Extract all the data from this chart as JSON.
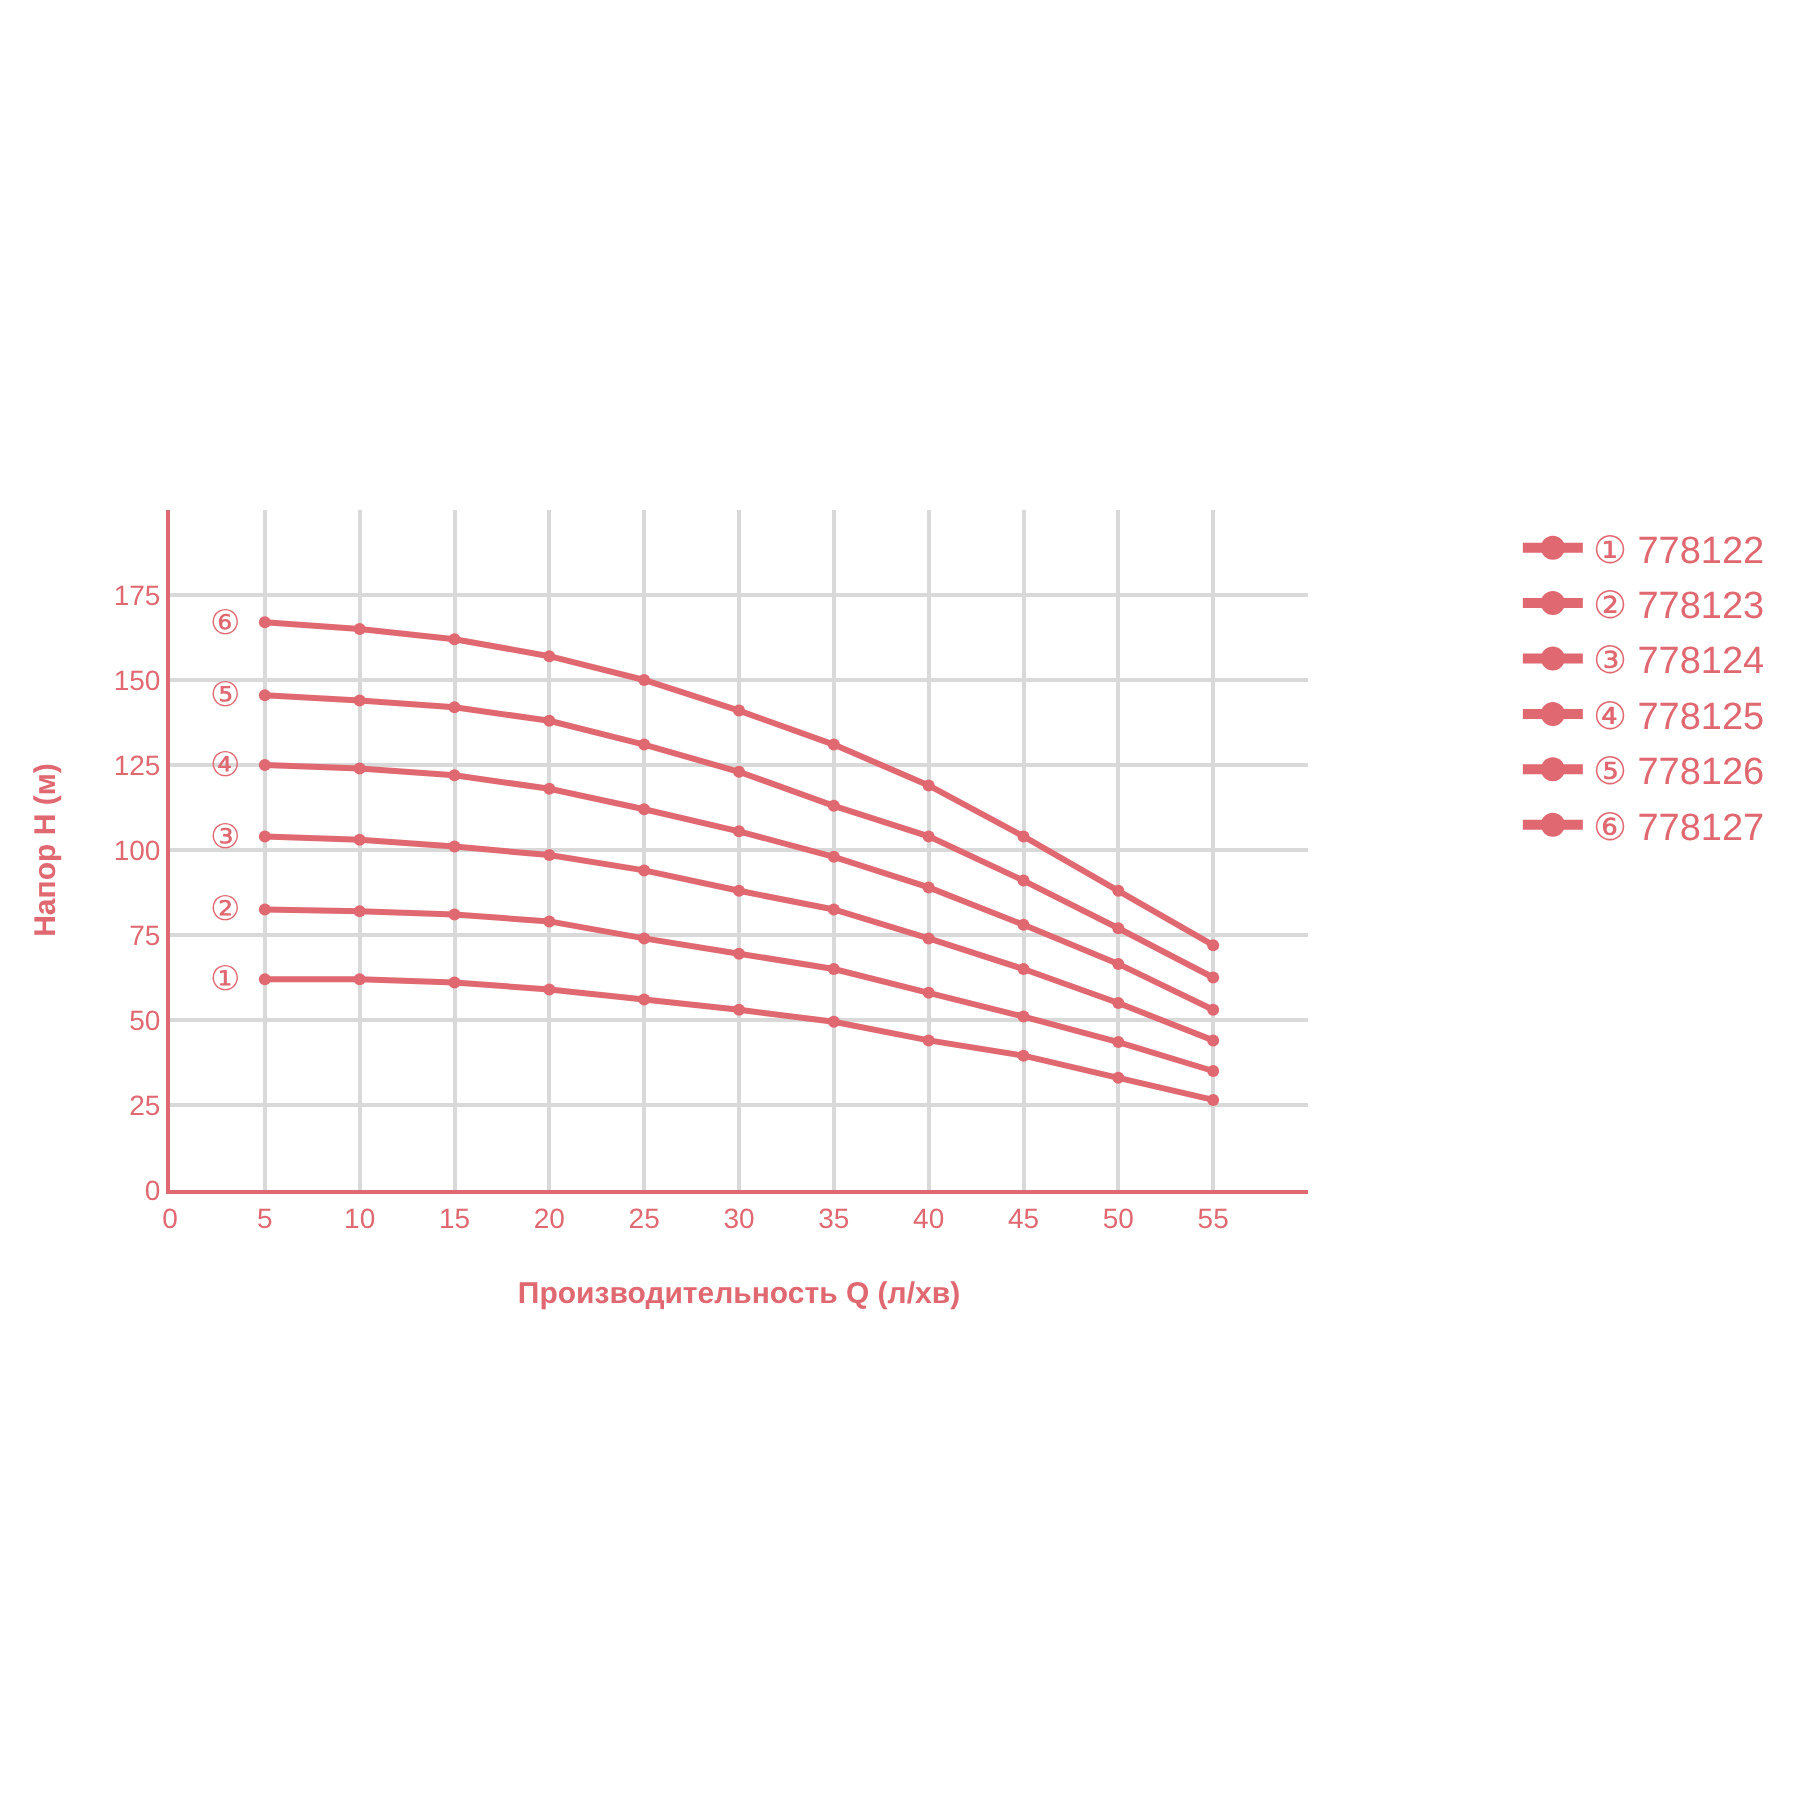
{
  "chart_data": {
    "type": "line",
    "xlabel": "Производительность Q (л/хв)",
    "ylabel": "Напор H (м)",
    "x": [
      5,
      10,
      15,
      20,
      25,
      30,
      35,
      40,
      45,
      50,
      55
    ],
    "xlim": [
      0,
      60
    ],
    "xticks": [
      0,
      5,
      10,
      15,
      20,
      25,
      30,
      35,
      40,
      45,
      50,
      55
    ],
    "ylim": [
      0,
      200
    ],
    "yticks": [
      0,
      25,
      50,
      75,
      100,
      125,
      150,
      175
    ],
    "grid": true,
    "legend": "right",
    "marker": "circle",
    "line_style": "solid",
    "series": [
      {
        "name": "① 778122",
        "color": "#e06870",
        "values": [
          62,
          62,
          61,
          59,
          56,
          53,
          49.5,
          44,
          39.5,
          33,
          26.5
        ]
      },
      {
        "name": "② 778123",
        "color": "#e06870",
        "values": [
          82.5,
          82,
          81,
          79,
          74,
          69.5,
          65,
          58,
          51,
          43.5,
          35
        ]
      },
      {
        "name": "③ 778124",
        "color": "#e06870",
        "values": [
          104,
          103,
          101,
          98.5,
          94,
          88,
          82.5,
          74,
          65,
          55,
          44
        ]
      },
      {
        "name": "④ 778125",
        "color": "#e06870",
        "values": [
          125,
          124,
          122,
          118,
          112,
          105.5,
          98,
          89,
          78,
          66.5,
          53
        ]
      },
      {
        "name": "⑤ 778126",
        "color": "#e06870",
        "values": [
          145.5,
          144,
          142,
          138,
          131,
          123,
          113,
          104,
          91,
          77,
          62.5
        ]
      },
      {
        "name": "⑥ 778127",
        "color": "#e06870",
        "values": [
          167,
          165,
          162,
          157,
          150,
          141,
          131,
          119,
          104,
          88,
          72
        ]
      }
    ],
    "annotations": [
      "①",
      "②",
      "③",
      "④",
      "⑤",
      "⑥"
    ]
  }
}
